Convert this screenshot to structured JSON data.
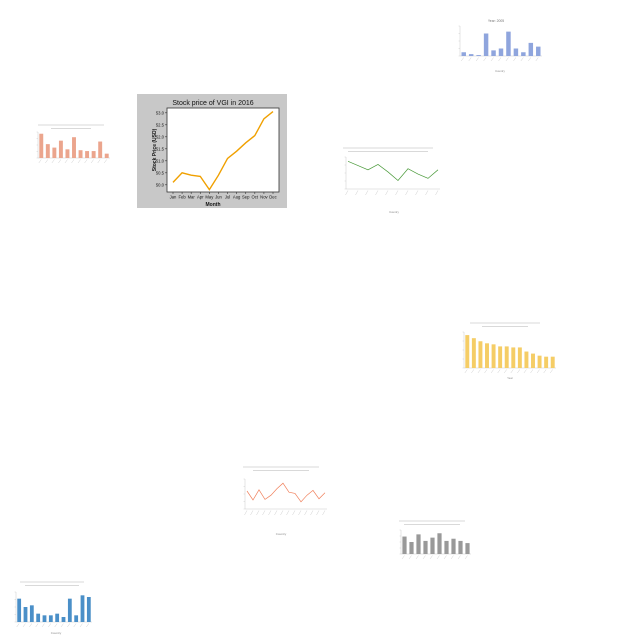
{
  "colors": {
    "main_line": "#f0a000",
    "main_bg": "#c8c8c8",
    "ins1": "#8fa5dd",
    "ins2": "#eba58d",
    "ins3": "#4a9a3a",
    "ins4": "#f5cd66",
    "ins5": "#f0805c",
    "ins6": "#999999",
    "ins7": "#4a8fc8"
  },
  "chart_data": [
    {
      "type": "line",
      "title": "Stock price of VGI in 2016",
      "xlabel": "Month",
      "ylabel": "Stock Price (USD)",
      "categories": [
        "Jan",
        "Feb",
        "Mar",
        "Apr",
        "May",
        "Jun",
        "Jul",
        "Aug",
        "Sep",
        "Oct",
        "Nov",
        "Dec"
      ],
      "values": [
        50.1,
        50.5,
        50.4,
        50.35,
        49.8,
        50.4,
        51.1,
        51.4,
        51.75,
        52.05,
        52.75,
        53.05
      ],
      "yticks": [
        "50.0",
        "50.5",
        "51.0",
        "51.5",
        "52.0",
        "52.5",
        "53.0"
      ],
      "ylim": [
        49.7,
        53.2
      ],
      "grid": false
    },
    {
      "type": "bar",
      "title": "Year: 2005",
      "xlabel": "Country",
      "values": [
        2,
        1,
        0.5,
        12,
        3,
        4,
        13,
        4,
        2,
        7,
        5
      ],
      "ylim": [
        0,
        16
      ]
    },
    {
      "type": "bar",
      "title": "",
      "values": [
        28,
        16,
        12,
        20,
        10,
        24,
        9,
        8,
        8,
        19,
        5
      ],
      "ylim": [
        0,
        30
      ]
    },
    {
      "type": "line",
      "title": "",
      "xlabel": "Country",
      "values": [
        3100,
        2900,
        2700,
        2950,
        2600,
        2200,
        2750,
        2500,
        2300,
        2700
      ],
      "ylim": [
        1800,
        3300
      ]
    },
    {
      "type": "bar",
      "title": "",
      "xlabel": "Year",
      "values": [
        32,
        29,
        26,
        24,
        23,
        21,
        21,
        20,
        20,
        16,
        14,
        12,
        11,
        11
      ],
      "ylim": [
        0,
        35
      ]
    },
    {
      "type": "line",
      "title": "",
      "xlabel": "Country",
      "values": [
        3.0,
        1.5,
        3.2,
        1.6,
        2.3,
        3.4,
        4.3,
        2.8,
        2.6,
        1.2,
        2.3,
        3.1,
        1.7,
        2.7
      ],
      "ylim": [
        0,
        5
      ]
    },
    {
      "type": "bar",
      "title": "",
      "values": [
        16,
        11,
        18,
        12,
        15,
        19,
        12,
        14,
        12,
        10
      ],
      "ylim": [
        0,
        22
      ]
    },
    {
      "type": "bar",
      "title": "",
      "xlabel": "Country",
      "values": [
        14,
        9,
        10,
        5,
        4,
        4,
        5,
        3,
        14,
        4,
        16,
        15
      ],
      "ylim": [
        0,
        18
      ]
    }
  ]
}
